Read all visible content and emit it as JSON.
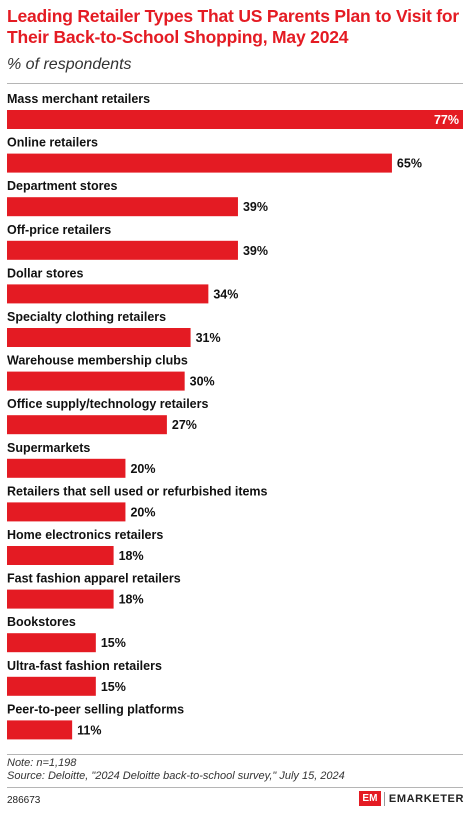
{
  "header": {
    "title": "Leading Retailer Types That US Parents Plan to Visit for Their Back-to-School Shopping, May 2024",
    "subtitle": "% of respondents"
  },
  "chart_data": {
    "type": "bar",
    "orientation": "horizontal",
    "title": "Leading Retailer Types That US Parents Plan to Visit for Their Back-to-School Shopping, May 2024",
    "subtitle": "% of respondents",
    "categories": [
      "Mass merchant retailers",
      "Online retailers",
      "Department stores",
      "Off-price retailers",
      "Dollar stores",
      "Specialty clothing retailers",
      "Warehouse membership clubs",
      "Office supply/technology retailers",
      "Supermarkets",
      "Retailers that sell used or refurbished items",
      "Home electronics retailers",
      "Fast fashion apparel retailers",
      "Bookstores",
      "Ultra-fast fashion retailers",
      "Peer-to-peer selling platforms"
    ],
    "values": [
      77,
      65,
      39,
      39,
      34,
      31,
      30,
      27,
      20,
      20,
      18,
      18,
      15,
      15,
      11
    ],
    "value_labels": [
      "77%",
      "65%",
      "39%",
      "39%",
      "34%",
      "31%",
      "30%",
      "27%",
      "20%",
      "20%",
      "18%",
      "18%",
      "15%",
      "15%",
      "11%"
    ],
    "xlim": [
      0,
      77
    ],
    "bar_color": "#e41b23",
    "grid": false,
    "legend": "none"
  },
  "footer": {
    "note": "Note: n=1,198",
    "source": "Source: Deloitte, \"2024 Deloitte back-to-school survey,\" July 15, 2024",
    "chart_id": "286673",
    "brand_mark": "EM",
    "brand_name": "EMARKETER"
  }
}
